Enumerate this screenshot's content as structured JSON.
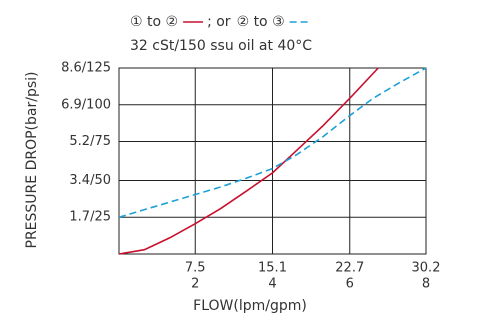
{
  "chart_data": {
    "type": "line",
    "legend_joiner": "; or",
    "subtitle": "32 cSt/150 ssu oil at 40°C",
    "x_label": "FLOW(lpm/gpm)",
    "y_label": "PRESSURE DROP(bar/psi)",
    "xlim": [
      0,
      30.2
    ],
    "ylim": [
      0,
      8.6
    ],
    "xticks": [
      7.5,
      15.1,
      22.7,
      30.2
    ],
    "xticks_gpm": [
      {
        "value": 7.5,
        "label": "2"
      },
      {
        "value": 15.1,
        "label": "4"
      },
      {
        "value": 22.7,
        "label": "6"
      },
      {
        "value": 30.2,
        "label": "8"
      }
    ],
    "yticks": [
      {
        "value": 1.7,
        "label": "1.7/25"
      },
      {
        "value": 3.4,
        "label": "3.4/50"
      },
      {
        "value": 5.2,
        "label": "5.2/75"
      },
      {
        "value": 6.9,
        "label": "6.9/100"
      },
      {
        "value": 8.6,
        "label": "8.6/125"
      }
    ],
    "grid": true,
    "series": [
      {
        "name": "① to ②",
        "color": "#c8102e",
        "dash": false,
        "x": [
          0,
          2.5,
          5,
          7.5,
          10,
          12.5,
          15.1,
          17.5,
          20,
          22.7,
          25.5
        ],
        "values": [
          0,
          0.2,
          0.75,
          1.4,
          2.1,
          2.9,
          3.75,
          4.8,
          5.9,
          7.2,
          8.6
        ]
      },
      {
        "name": "② to ③",
        "color": "#1ca0d8",
        "dash": true,
        "x": [
          0,
          2.5,
          5,
          7.5,
          10,
          12.5,
          15.1,
          17.5,
          20,
          22.7,
          25,
          27.5,
          30.2
        ],
        "values": [
          1.7,
          2.05,
          2.4,
          2.75,
          3.1,
          3.5,
          3.95,
          4.6,
          5.4,
          6.4,
          7.2,
          7.9,
          8.6
        ]
      }
    ]
  }
}
